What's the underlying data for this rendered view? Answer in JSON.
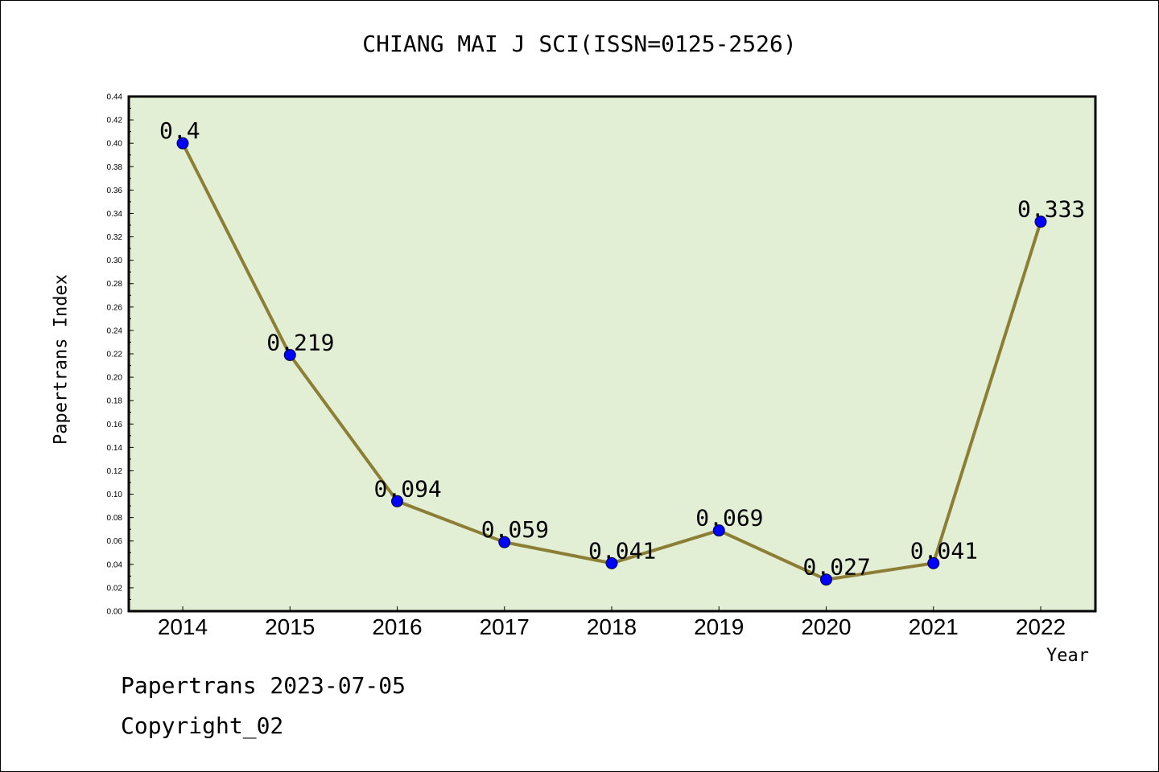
{
  "chart_data": {
    "type": "line",
    "title": "CHIANG MAI J SCI(ISSN=0125-2526)",
    "xlabel": "Year",
    "ylabel": "Papertrans Index",
    "categories": [
      "2014",
      "2015",
      "2016",
      "2017",
      "2018",
      "2019",
      "2020",
      "2021",
      "2022"
    ],
    "series": [
      {
        "values": [
          0.4,
          0.219,
          0.094,
          0.059,
          0.041,
          0.069,
          0.027,
          0.041,
          0.333
        ],
        "data_labels": [
          "0.4",
          "0.219",
          "0.094",
          "0.059",
          "0.041",
          "0.069",
          "0.027",
          "0.041",
          "0.333"
        ]
      }
    ],
    "ylim": [
      0,
      0.44
    ],
    "yticks": [
      "0.00",
      "0.02",
      "0.04",
      "0.06",
      "0.08",
      "0.10",
      "0.12",
      "0.14",
      "0.16",
      "0.18",
      "0.20",
      "0.22",
      "0.24",
      "0.26",
      "0.28",
      "0.30",
      "0.32",
      "0.34",
      "0.36",
      "0.38",
      "0.40",
      "0.42",
      "0.44"
    ],
    "grid": false,
    "legend": false,
    "colors": {
      "plot_background": "#e2efd5",
      "line": "#8c7f35",
      "marker": "#0000ff"
    }
  },
  "footer": {
    "date_text": "Papertrans 2023-07-05",
    "copyright_text": "Copyright_02"
  }
}
